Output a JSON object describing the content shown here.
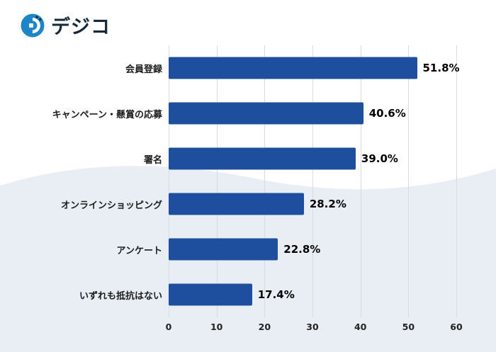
{
  "logo": {
    "brand": "デジコ"
  },
  "chart_data": {
    "type": "bar",
    "orientation": "horizontal",
    "title": "",
    "xlabel": "",
    "ylabel": "",
    "categories": [
      "会員登録",
      "キャンペーン・懸賞の応募",
      "署名",
      "オンラインショッピング",
      "アンケート",
      "いずれも抵抗はない"
    ],
    "values": [
      51.8,
      40.6,
      39.0,
      28.2,
      22.8,
      17.4
    ],
    "value_labels": [
      "51.8%",
      "40.6%",
      "39.0%",
      "28.2%",
      "22.8%",
      "17.4%"
    ],
    "xlim": [
      0,
      60
    ],
    "xticks": [
      0,
      10,
      20,
      30,
      40,
      50,
      60
    ],
    "grid": true,
    "legend": false,
    "bar_color": "#1d4f9e"
  },
  "colors": {
    "bar": "#1d4f9e",
    "gridline": "#d7dbe0",
    "wave_fill": "#e9eef5",
    "logo_icon_blue": "#1e86c8",
    "logo_text": "#16283a"
  }
}
